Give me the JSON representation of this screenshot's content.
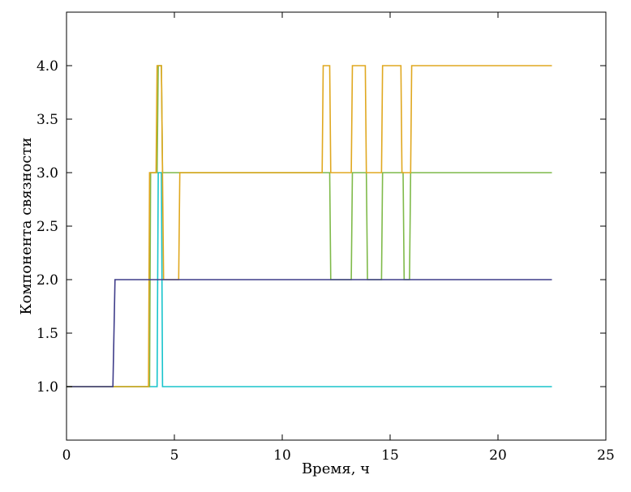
{
  "chart_data": {
    "type": "line",
    "title": "",
    "xlabel": "Время, ч",
    "ylabel": "Компонента связности",
    "xlim": [
      0,
      25
    ],
    "ylim": [
      0.5,
      4.5
    ],
    "xticks": [
      0,
      5,
      10,
      15,
      20,
      25
    ],
    "xtick_labels": [
      "0",
      "5",
      "10",
      "15",
      "20",
      "25"
    ],
    "yticks": [
      1.0,
      1.5,
      2.0,
      2.5,
      3.0,
      3.5,
      4.0
    ],
    "ytick_labels": [
      "1.0",
      "1.5",
      "2.0",
      "2.5",
      "3.0",
      "3.5",
      "4.0"
    ],
    "grid": false,
    "series": [
      {
        "color": "#19c4cc",
        "points": [
          [
            0,
            1
          ],
          [
            4.2,
            1
          ],
          [
            4.25,
            3
          ],
          [
            4.4,
            3
          ],
          [
            4.45,
            1
          ],
          [
            22.5,
            1
          ]
        ]
      },
      {
        "color": "#7fba4a",
        "points": [
          [
            0,
            1
          ],
          [
            3.85,
            1
          ],
          [
            3.9,
            3
          ],
          [
            4.2,
            3
          ],
          [
            4.25,
            4
          ],
          [
            4.4,
            4
          ],
          [
            4.45,
            3
          ],
          [
            11.85,
            3
          ],
          [
            11.9,
            3
          ],
          [
            12.2,
            3
          ],
          [
            12.25,
            2
          ],
          [
            13.2,
            2
          ],
          [
            13.25,
            3
          ],
          [
            13.9,
            3
          ],
          [
            13.95,
            2
          ],
          [
            14.6,
            2
          ],
          [
            14.65,
            3
          ],
          [
            15.6,
            3
          ],
          [
            15.65,
            2
          ],
          [
            15.9,
            2
          ],
          [
            15.95,
            3
          ],
          [
            22.5,
            3
          ]
        ]
      },
      {
        "color": "#e0a820",
        "points": [
          [
            0,
            1
          ],
          [
            3.8,
            1
          ],
          [
            3.85,
            3
          ],
          [
            4.15,
            3
          ],
          [
            4.2,
            4
          ],
          [
            4.4,
            4
          ],
          [
            4.5,
            2
          ],
          [
            5.2,
            2
          ],
          [
            5.25,
            3
          ],
          [
            11.85,
            3
          ],
          [
            11.9,
            4
          ],
          [
            12.2,
            4
          ],
          [
            12.25,
            3
          ],
          [
            13.2,
            3
          ],
          [
            13.25,
            4
          ],
          [
            13.85,
            4
          ],
          [
            13.9,
            3
          ],
          [
            14.6,
            3
          ],
          [
            14.65,
            4
          ],
          [
            15.5,
            4
          ],
          [
            15.55,
            3
          ],
          [
            15.95,
            3
          ],
          [
            16.0,
            4
          ],
          [
            22.5,
            4
          ]
        ]
      },
      {
        "color": "#3f3d8a",
        "points": [
          [
            0,
            1
          ],
          [
            2.15,
            1
          ],
          [
            2.25,
            2
          ],
          [
            22.5,
            2
          ]
        ]
      }
    ]
  }
}
